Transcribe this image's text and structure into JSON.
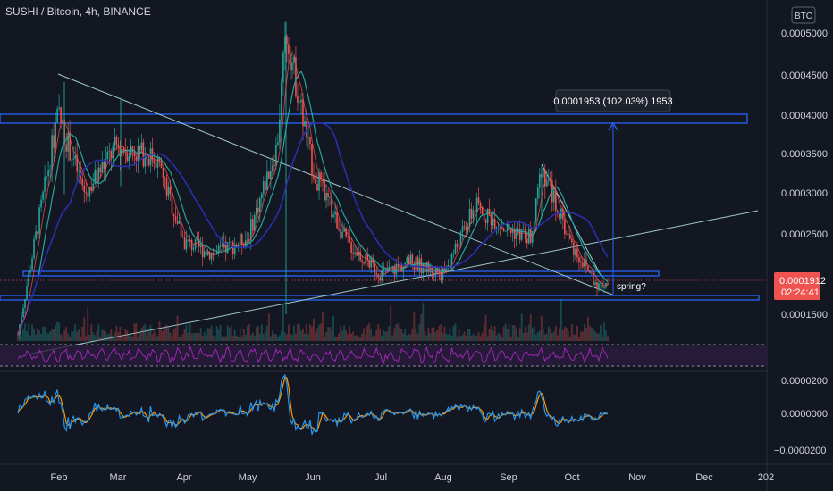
{
  "header": {
    "symbol_title": "SUSHI / Bitcoin, 4h, BINANCE",
    "currency": "BTC"
  },
  "price_axis": {
    "ticks": [
      "0.0005000",
      "0.0004500",
      "0.0004000",
      "0.0003500",
      "0.0003000",
      "0.0002500",
      "0.0001500"
    ],
    "current_price": "0.0001912",
    "countdown": "02:24:41"
  },
  "oscillator_axis": {
    "ticks": [
      "0.0000200",
      "0.0000000",
      "−0.0000200"
    ]
  },
  "time_axis": {
    "labels": [
      "Feb",
      "Mar",
      "Apr",
      "May",
      "Jun",
      "Jul",
      "Aug",
      "Sep",
      "Oct",
      "Nov",
      "Dec",
      "202"
    ]
  },
  "annotations": {
    "measure": "0.0001953 (102.03%) 1953",
    "spring": "spring?"
  },
  "colors": {
    "background": "#131722",
    "up": "#26a69a",
    "down": "#ef5350",
    "band": "#2962ff",
    "trend": "#9ec8c8",
    "rsi": "#9c27b0",
    "osc_fast": "#2196f3",
    "osc_slow": "#ff9800",
    "price_tag": "#ef5350"
  },
  "chart_data": {
    "type": "line",
    "title": "SUSHI / Bitcoin, 4h, BINANCE",
    "x": [
      "Jan 15",
      "Feb 1",
      "Feb 15",
      "Mar 1",
      "Mar 15",
      "Apr 1",
      "Apr 15",
      "May 1",
      "May 15",
      "May 22",
      "Jun 1",
      "Jun 15",
      "Jul 1",
      "Jul 15",
      "Aug 1",
      "Aug 15",
      "Sep 1",
      "Sep 15",
      "Sep 20",
      "Oct 1",
      "Oct 12",
      "Oct 18"
    ],
    "series": [
      {
        "values": [
          0.000125,
          0.0004,
          0.0003,
          0.00036,
          0.000345,
          0.00024,
          0.000225,
          0.000245,
          0.00036,
          0.000505,
          0.00033,
          0.00024,
          0.0002,
          0.000215,
          0.0002,
          0.000285,
          0.000255,
          0.000245,
          0.000335,
          0.000235,
          0.000185,
          0.000191
        ]
      }
    ],
    "ylim": [
      0.00011,
      0.00052
    ],
    "horizontal_levels": [
      0.000395,
      0.000203,
      0.000165
    ],
    "measure": {
      "from": 0.000191,
      "to": 0.000386,
      "label": "0.0001953 (102.03%) 1953"
    },
    "xlabel": "",
    "ylabel": ""
  }
}
